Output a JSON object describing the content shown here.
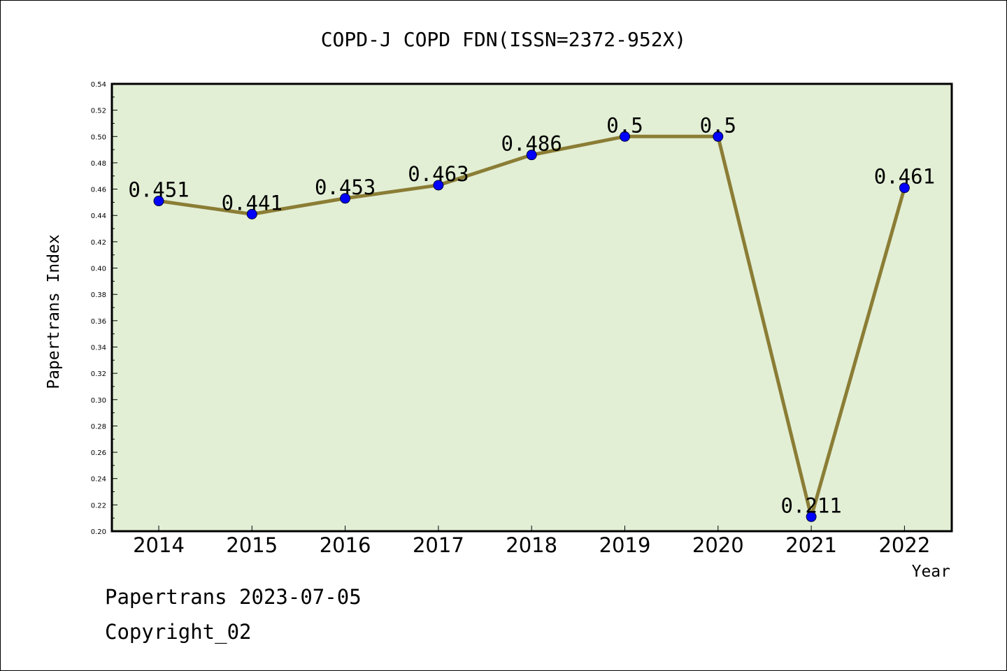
{
  "chart_data": {
    "type": "line",
    "title": "COPD-J COPD FDN(ISSN=2372-952X)",
    "xlabel": "Year",
    "ylabel": "Papertrans Index",
    "categories": [
      "2014",
      "2015",
      "2016",
      "2017",
      "2018",
      "2019",
      "2020",
      "2021",
      "2022"
    ],
    "series": [
      {
        "values": [
          0.451,
          0.441,
          0.453,
          0.463,
          0.486,
          0.5,
          0.5,
          0.211,
          0.461
        ],
        "data_labels": [
          "0.451",
          "0.441",
          "0.453",
          "0.463",
          "0.486",
          "0.5",
          "0.5",
          "0.211",
          "0.461"
        ]
      }
    ],
    "ylim": [
      0.2,
      0.54
    ],
    "yticks": [
      "0.20",
      "0.22",
      "0.24",
      "0.26",
      "0.28",
      "0.30",
      "0.32",
      "0.34",
      "0.36",
      "0.38",
      "0.40",
      "0.42",
      "0.44",
      "0.46",
      "0.48",
      "0.50",
      "0.52",
      "0.54"
    ],
    "grid": false,
    "colors": {
      "plot_background": "#e2efd5",
      "line": "#8b7d35",
      "marker": "#0000ff"
    }
  },
  "footer": {
    "line1": "Papertrans 2023-07-05",
    "line2": "Copyright_02"
  }
}
